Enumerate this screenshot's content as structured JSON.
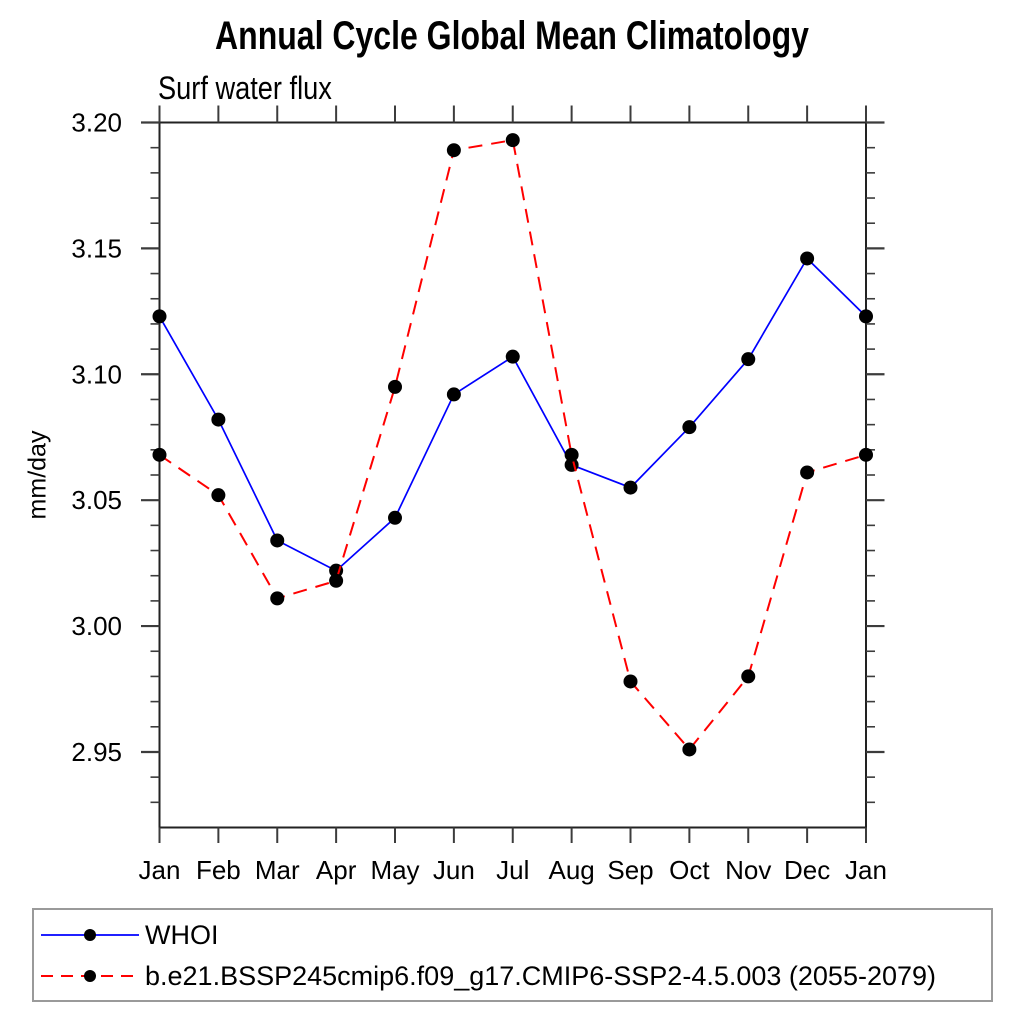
{
  "title": "Annual Cycle Global Mean Climatology",
  "subtitle": "Surf water flux",
  "ylabel": "mm/day",
  "colors": {
    "whoi_line": "#0000ff",
    "model_line": "#ff0000",
    "marker": "#000000",
    "axis": "#3c3c3c",
    "legend_border": "#9a9a9a"
  },
  "legend": {
    "items": [
      {
        "label": "WHOI"
      },
      {
        "label": "b.e21.BSSP245cmip6.f09_g17.CMIP6-SSP2-4.5.003 (2055-2079)"
      }
    ]
  },
  "chart_data": {
    "type": "line",
    "title": "Annual Cycle Global Mean Climatology",
    "subtitle": "Surf water flux",
    "xlabel": "",
    "ylabel": "mm/day",
    "categories": [
      "Jan",
      "Feb",
      "Mar",
      "Apr",
      "May",
      "Jun",
      "Jul",
      "Aug",
      "Sep",
      "Oct",
      "Nov",
      "Dec",
      "Jan"
    ],
    "ylim": [
      2.92,
      3.2
    ],
    "y_major_ticks": [
      3.2,
      3.15,
      3.1,
      3.05,
      3.0,
      2.95
    ],
    "y_tick_labels": [
      "3.20",
      "3.15",
      "3.10",
      "3.05",
      "3.00",
      "2.95"
    ],
    "y_minor_step": 0.01,
    "grid": false,
    "legend_position": "bottom-left-box",
    "series": [
      {
        "name": "WHOI",
        "color": "#0000ff",
        "line_style": "solid",
        "marker": "filled-circle",
        "marker_color": "#000000",
        "values": [
          3.123,
          3.082,
          3.034,
          3.022,
          3.043,
          3.092,
          3.107,
          3.064,
          3.055,
          3.079,
          3.106,
          3.146,
          3.123
        ]
      },
      {
        "name": "b.e21.BSSP245cmip6.f09_g17.CMIP6-SSP2-4.5.003 (2055-2079)",
        "color": "#ff0000",
        "line_style": "dashed",
        "marker": "filled-circle",
        "marker_color": "#000000",
        "values": [
          3.068,
          3.052,
          3.011,
          3.018,
          3.095,
          3.189,
          3.193,
          3.068,
          2.978,
          2.951,
          2.98,
          3.061,
          3.068
        ]
      }
    ]
  }
}
